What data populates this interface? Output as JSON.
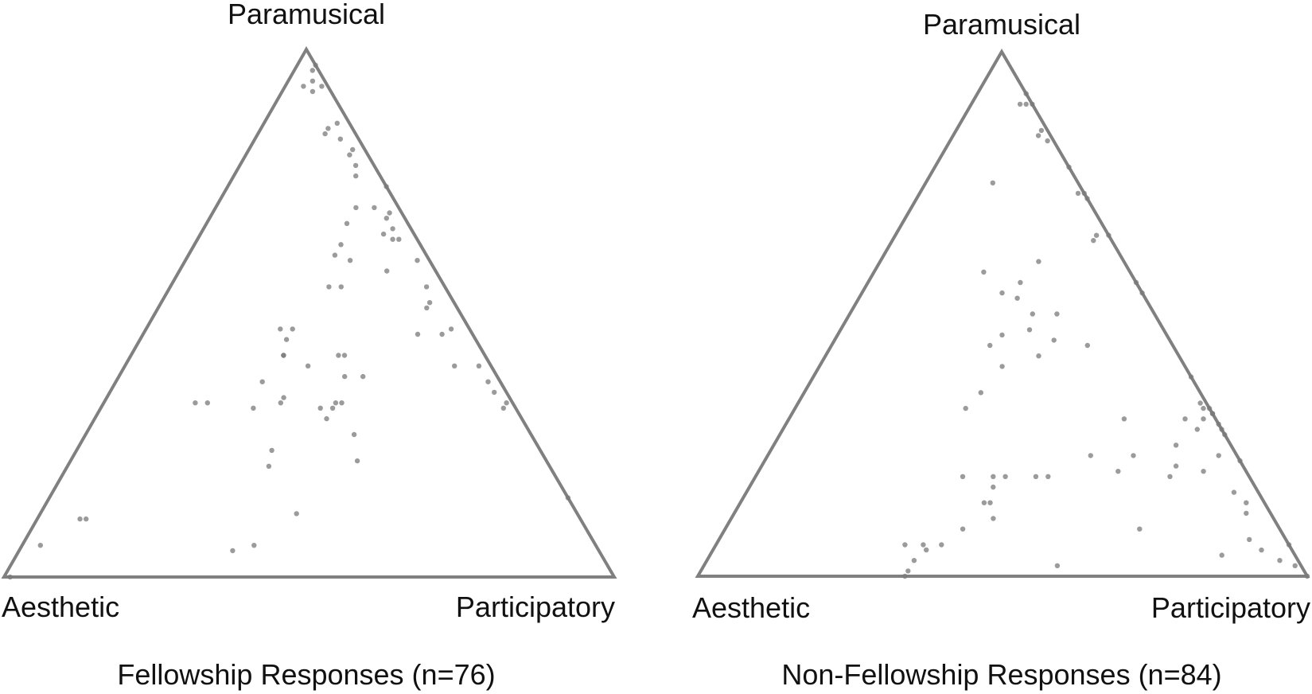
{
  "chart_data": [
    {
      "type": "ternary-scatter",
      "vertices": {
        "top": "Paramusical",
        "left": "Aesthetic",
        "right": "Participatory"
      },
      "caption": "Fellowship Responses (n=76)",
      "points": [
        [
          0.0,
          0.97,
          0.03
        ],
        [
          0.02,
          0.94,
          0.04
        ],
        [
          0.04,
          0.93,
          0.03
        ],
        [
          0.01,
          0.93,
          0.06
        ],
        [
          0.01,
          0.96,
          0.03
        ],
        [
          0.03,
          0.92,
          0.05
        ],
        [
          0.02,
          0.86,
          0.12
        ],
        [
          0.05,
          0.84,
          0.11
        ],
        [
          0.04,
          0.85,
          0.11
        ],
        [
          0.03,
          0.83,
          0.14
        ],
        [
          0.03,
          0.78,
          0.19
        ],
        [
          0.02,
          0.81,
          0.17
        ],
        [
          0.03,
          0.8,
          0.17
        ],
        [
          0.07,
          0.7,
          0.23
        ],
        [
          0.04,
          0.76,
          0.2
        ],
        [
          0.04,
          0.7,
          0.26
        ],
        [
          0.02,
          0.69,
          0.29
        ],
        [
          0.03,
          0.66,
          0.31
        ],
        [
          0.05,
          0.65,
          0.3
        ],
        [
          0.04,
          0.64,
          0.32
        ],
        [
          0.03,
          0.64,
          0.33
        ],
        [
          0.02,
          0.6,
          0.38
        ],
        [
          0.03,
          0.55,
          0.42
        ],
        [
          0.04,
          0.52,
          0.44
        ],
        [
          0.03,
          0.47,
          0.5
        ],
        [
          0.02,
          0.4,
          0.58
        ],
        [
          0.02,
          0.35,
          0.63
        ],
        [
          0.02,
          0.32,
          0.66
        ],
        [
          0.01,
          0.33,
          0.66
        ],
        [
          0.0,
          0.15,
          0.85
        ],
        [
          0.0,
          0.74,
          0.26
        ],
        [
          0.1,
          0.67,
          0.23
        ],
        [
          0.08,
          0.58,
          0.34
        ],
        [
          0.05,
          0.51,
          0.44
        ],
        [
          0.09,
          0.46,
          0.45
        ],
        [
          0.06,
          0.4,
          0.54
        ],
        [
          0.13,
          0.63,
          0.24
        ],
        [
          0.13,
          0.6,
          0.27
        ],
        [
          0.17,
          0.55,
          0.28
        ],
        [
          0.15,
          0.61,
          0.24
        ],
        [
          0.19,
          0.55,
          0.26
        ],
        [
          0.23,
          0.42,
          0.35
        ],
        [
          0.24,
          0.42,
          0.34
        ],
        [
          0.29,
          0.47,
          0.24
        ],
        [
          0.22,
          0.38,
          0.4
        ],
        [
          0.25,
          0.38,
          0.37
        ],
        [
          0.3,
          0.4,
          0.3
        ],
        [
          0.31,
          0.47,
          0.22
        ],
        [
          0.31,
          0.45,
          0.24
        ],
        [
          0.33,
          0.42,
          0.25
        ],
        [
          0.28,
          0.33,
          0.39
        ],
        [
          0.3,
          0.32,
          0.38
        ],
        [
          0.32,
          0.32,
          0.36
        ],
        [
          0.33,
          0.42,
          0.25
        ],
        [
          0.29,
          0.27,
          0.44
        ],
        [
          0.32,
          0.3,
          0.38
        ],
        [
          0.31,
          0.22,
          0.47
        ],
        [
          0.37,
          0.34,
          0.29
        ],
        [
          0.38,
          0.33,
          0.29
        ],
        [
          0.29,
          0.33,
          0.38
        ],
        [
          0.39,
          0.37,
          0.24
        ],
        [
          0.44,
          0.24,
          0.32
        ],
        [
          0.46,
          0.12,
          0.42
        ],
        [
          0.43,
          0.32,
          0.25
        ],
        [
          0.46,
          0.21,
          0.33
        ],
        [
          0.5,
          0.33,
          0.17
        ],
        [
          0.56,
          0.06,
          0.38
        ],
        [
          0.6,
          0.05,
          0.35
        ],
        [
          0.52,
          0.33,
          0.15
        ],
        [
          0.81,
          0.11,
          0.08
        ],
        [
          0.82,
          0.11,
          0.07
        ],
        [
          0.91,
          0.06,
          0.03
        ],
        [
          0.99,
          0.0,
          0.01
        ],
        [
          0.02,
          0.37,
          0.61
        ],
        [
          0.05,
          0.46,
          0.49
        ],
        [
          0.03,
          0.68,
          0.29
        ]
      ]
    },
    {
      "type": "ternary-scatter",
      "vertices": {
        "top": "Paramusical",
        "left": "Aesthetic",
        "right": "Participatory"
      },
      "caption": "Non-Fellowship Responses (n=84)",
      "points": [
        [
          0.0,
          0.92,
          0.08
        ],
        [
          0.0,
          0.9,
          0.1
        ],
        [
          0.01,
          0.9,
          0.09
        ],
        [
          0.02,
          0.9,
          0.08
        ],
        [
          0.01,
          0.85,
          0.14
        ],
        [
          0.02,
          0.84,
          0.14
        ],
        [
          0.01,
          0.83,
          0.16
        ],
        [
          0.0,
          0.78,
          0.22
        ],
        [
          0.0,
          0.73,
          0.27
        ],
        [
          0.01,
          0.73,
          0.26
        ],
        [
          0.0,
          0.72,
          0.28
        ],
        [
          0.0,
          0.65,
          0.35
        ],
        [
          0.02,
          0.65,
          0.33
        ],
        [
          0.03,
          0.64,
          0.33
        ],
        [
          0.0,
          0.56,
          0.44
        ],
        [
          0.0,
          0.54,
          0.46
        ],
        [
          0.0,
          0.38,
          0.62
        ],
        [
          0.0,
          0.32,
          0.68
        ],
        [
          0.01,
          0.32,
          0.67
        ],
        [
          0.0,
          0.31,
          0.69
        ],
        [
          0.01,
          0.33,
          0.66
        ],
        [
          0.0,
          0.31,
          0.69
        ],
        [
          0.02,
          0.3,
          0.68
        ],
        [
          0.04,
          0.28,
          0.68
        ],
        [
          0.05,
          0.3,
          0.65
        ],
        [
          0.0,
          0.28,
          0.72
        ],
        [
          0.09,
          0.25,
          0.66
        ],
        [
          0.11,
          0.21,
          0.68
        ],
        [
          0.05,
          0.05,
          0.9
        ],
        [
          0.0,
          0.06,
          0.94
        ],
        [
          0.14,
          0.75,
          0.11
        ],
        [
          0.14,
          0.6,
          0.26
        ],
        [
          0.16,
          0.5,
          0.34
        ],
        [
          0.14,
          0.44,
          0.42
        ],
        [
          0.19,
          0.56,
          0.25
        ],
        [
          0.19,
          0.45,
          0.36
        ],
        [
          0.21,
          0.53,
          0.26
        ],
        [
          0.2,
          0.5,
          0.3
        ],
        [
          0.23,
          0.42,
          0.35
        ],
        [
          0.22,
          0.47,
          0.31
        ],
        [
          0.27,
          0.46,
          0.27
        ],
        [
          0.3,
          0.44,
          0.26
        ],
        [
          0.23,
          0.54,
          0.23
        ],
        [
          0.24,
          0.58,
          0.18
        ],
        [
          0.17,
          0.23,
          0.6
        ],
        [
          0.36,
          0.35,
          0.29
        ],
        [
          0.4,
          0.32,
          0.28
        ],
        [
          0.33,
          0.19,
          0.48
        ],
        [
          0.4,
          0.19,
          0.41
        ],
        [
          0.42,
          0.19,
          0.39
        ],
        [
          0.45,
          0.14,
          0.41
        ],
        [
          0.43,
          0.17,
          0.4
        ],
        [
          0.47,
          0.19,
          0.34
        ],
        [
          0.46,
          0.14,
          0.4
        ],
        [
          0.52,
          0.09,
          0.39
        ],
        [
          0.46,
          0.11,
          0.43
        ],
        [
          0.57,
          0.06,
          0.37
        ],
        [
          0.6,
          0.06,
          0.34
        ],
        [
          0.6,
          0.05,
          0.35
        ],
        [
          0.63,
          0.06,
          0.31
        ],
        [
          0.63,
          0.03,
          0.34
        ],
        [
          0.65,
          0.01,
          0.34
        ],
        [
          0.66,
          0.0,
          0.34
        ],
        [
          0.4,
          0.02,
          0.58
        ],
        [
          0.35,
          0.19,
          0.46
        ],
        [
          0.3,
          0.4,
          0.3
        ],
        [
          0.03,
          0.23,
          0.74
        ],
        [
          0.0,
          0.22,
          0.78
        ],
        [
          0.0,
          0.27,
          0.73
        ],
        [
          0.0,
          0.29,
          0.71
        ],
        [
          0.21,
          0.2,
          0.59
        ],
        [
          0.24,
          0.23,
          0.53
        ],
        [
          0.01,
          0.02,
          0.97
        ],
        [
          0.03,
          0.03,
          0.94
        ],
        [
          0.04,
          0.16,
          0.8
        ],
        [
          0.04,
          0.12,
          0.84
        ],
        [
          0.07,
          0.2,
          0.73
        ],
        [
          0.03,
          0.14,
          0.83
        ],
        [
          0.15,
          0.3,
          0.55
        ],
        [
          0.13,
          0.19,
          0.68
        ],
        [
          0.0,
          0.0,
          1.0
        ],
        [
          0.06,
          0.07,
          0.87
        ],
        [
          0.23,
          0.09,
          0.68
        ],
        [
          0.12,
          0.04,
          0.84
        ]
      ]
    }
  ]
}
